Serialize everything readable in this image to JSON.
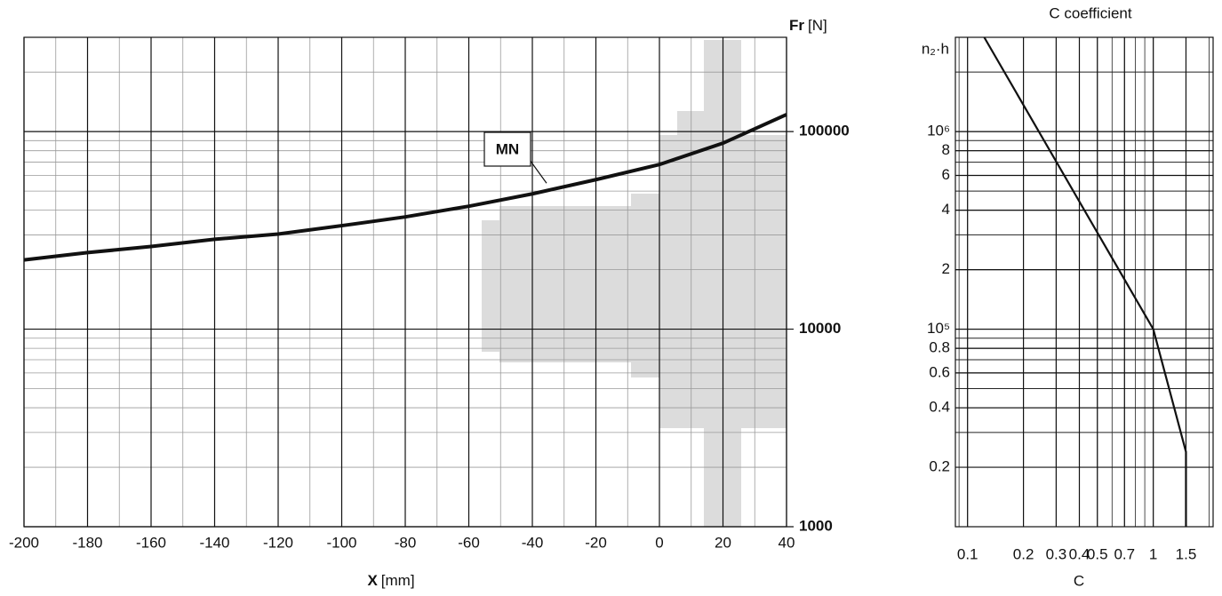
{
  "chart_data": [
    {
      "type": "line",
      "log_y": true,
      "x_label": "X",
      "x_unit": "[mm]",
      "y_label": "Fr",
      "y_unit": "[N]",
      "x": [
        -200,
        -180,
        -160,
        -140,
        -120,
        -100,
        -80,
        -60,
        -40,
        -20,
        0,
        20,
        40
      ],
      "series": [
        {
          "name": "MN",
          "color": "#111111",
          "values": [
            22400,
            24400,
            26200,
            28500,
            30300,
            33400,
            37000,
            41900,
            48400,
            57100,
            68100,
            87400,
            122000
          ]
        }
      ],
      "xlim": [
        -200,
        40
      ],
      "xticks": [
        -200,
        -180,
        -160,
        -140,
        -120,
        -100,
        -80,
        -60,
        -40,
        -20,
        0,
        20,
        40
      ],
      "ylim": [
        1000,
        300000
      ],
      "yticks": [
        1000,
        10000,
        100000
      ],
      "grid": true
    },
    {
      "type": "line",
      "log_x": true,
      "log_y": true,
      "title": "C coefficient",
      "x_label": "C",
      "y_label": "n₂·h",
      "x": [
        0.123,
        1,
        1.5,
        1.5
      ],
      "series": [
        {
          "color": "#111111",
          "values": [
            3000000,
            100000,
            23900,
            10000
          ]
        }
      ],
      "xlim": [
        0.086,
        2.1
      ],
      "xticks": [
        0.1,
        0.2,
        0.3,
        0.4,
        0.5,
        0.7,
        1,
        1.5
      ],
      "ylim": [
        10000,
        3000000
      ],
      "yticks": [
        {
          "value": 1000000,
          "label": "10⁶"
        },
        {
          "value": 800000,
          "label": "8"
        },
        {
          "value": 600000,
          "label": "6"
        },
        {
          "value": 400000,
          "label": "4"
        },
        {
          "value": 200000,
          "label": "2"
        },
        {
          "value": 100000,
          "label": "10⁵"
        },
        {
          "value": 80000,
          "label": "0.8"
        },
        {
          "value": 60000,
          "label": "0.6"
        },
        {
          "value": 40000,
          "label": "0.4"
        },
        {
          "value": 20000,
          "label": "0.2"
        }
      ],
      "grid": true
    }
  ]
}
